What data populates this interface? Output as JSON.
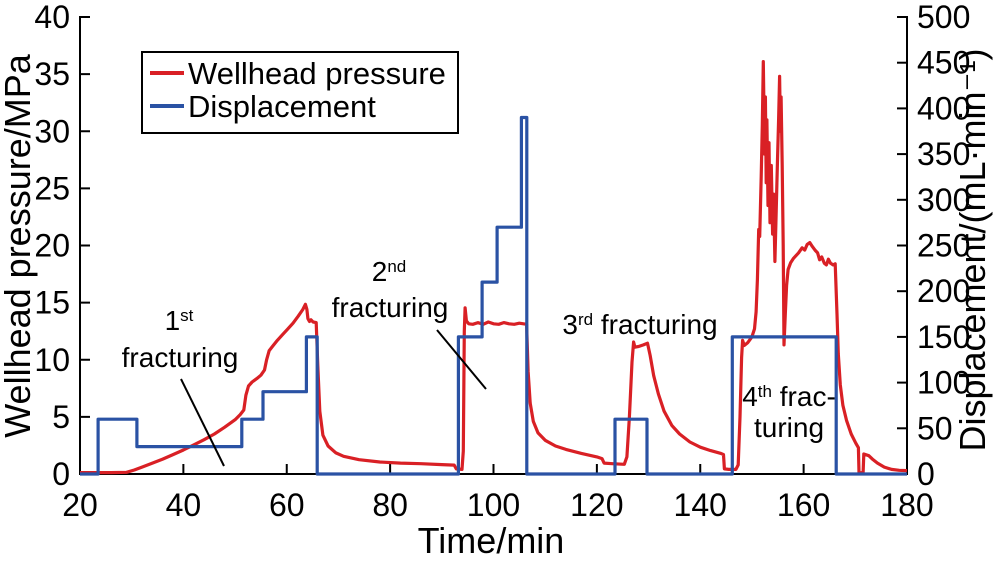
{
  "legend": {
    "items": [
      {
        "label": "Wellhead pressure",
        "color": "#d92025"
      },
      {
        "label": "Displacement",
        "color": "#2a52a4"
      }
    ]
  },
  "annotations": {
    "frac1": {
      "sup_base": "1",
      "sup": "st",
      "line2": "fracturing"
    },
    "frac2": {
      "sup_base": "2",
      "sup": "nd",
      "line2": "fracturing"
    },
    "frac3": {
      "sup_base": "3",
      "sup": "rd",
      "rest": " fracturing"
    },
    "frac4": {
      "sup_base": "4",
      "sup": "th",
      "rest": " frac-",
      "line2": "turing"
    }
  },
  "chart_data": {
    "type": "line",
    "x_axis": {
      "label": "Time/min",
      "range": [
        20,
        180
      ],
      "ticks": [
        20,
        40,
        60,
        80,
        100,
        120,
        140,
        160,
        180
      ]
    },
    "y_left": {
      "label": "Wellhead pressure/MPa",
      "range": [
        0,
        40
      ],
      "ticks": [
        0,
        5,
        10,
        15,
        20,
        25,
        30,
        35,
        40
      ]
    },
    "y_right": {
      "label": "Displacement/(mL·min⁻¹)",
      "range": [
        0,
        500
      ],
      "ticks": [
        0,
        50,
        100,
        150,
        200,
        250,
        300,
        350,
        400,
        450,
        500
      ]
    },
    "grid": false,
    "legend_position": "upper-left",
    "series": [
      {
        "name": "Wellhead pressure",
        "axis": "left",
        "style": "line",
        "color": "#d92025",
        "points": [
          [
            20,
            0.12
          ],
          [
            23,
            0.12
          ],
          [
            26,
            0.12
          ],
          [
            29,
            0.15
          ],
          [
            30.5,
            0.35
          ],
          [
            32,
            0.6
          ],
          [
            34,
            0.95
          ],
          [
            36,
            1.3
          ],
          [
            38,
            1.7
          ],
          [
            40,
            2.1
          ],
          [
            42,
            2.55
          ],
          [
            44,
            3.0
          ],
          [
            46,
            3.5
          ],
          [
            48,
            4.1
          ],
          [
            50,
            4.75
          ],
          [
            51,
            5.2
          ],
          [
            51.7,
            5.6
          ],
          [
            52.1,
            6.9
          ],
          [
            52.6,
            7.7
          ],
          [
            53.3,
            8.05
          ],
          [
            54.2,
            8.35
          ],
          [
            55,
            8.65
          ],
          [
            55.7,
            9.1
          ],
          [
            56.1,
            10.0
          ],
          [
            56.6,
            10.8
          ],
          [
            57.3,
            11.2
          ],
          [
            58.2,
            11.7
          ],
          [
            59.2,
            12.2
          ],
          [
            60.2,
            12.7
          ],
          [
            61.2,
            13.2
          ],
          [
            62.2,
            13.8
          ],
          [
            63.1,
            14.4
          ],
          [
            63.6,
            14.85
          ],
          [
            63.9,
            14.4
          ],
          [
            64.1,
            13.6
          ],
          [
            64.4,
            13.35
          ],
          [
            64.7,
            13.5
          ],
          [
            65.1,
            13.3
          ],
          [
            65.7,
            13.25
          ],
          [
            66.0,
            9.5
          ],
          [
            66.4,
            5.5
          ],
          [
            67,
            3.4
          ],
          [
            68,
            2.45
          ],
          [
            69.5,
            1.85
          ],
          [
            71,
            1.55
          ],
          [
            74,
            1.25
          ],
          [
            78,
            1.05
          ],
          [
            82,
            0.95
          ],
          [
            86,
            0.9
          ],
          [
            90,
            0.82
          ],
          [
            92.4,
            0.78
          ],
          [
            92.8,
            0.45
          ],
          [
            93.9,
            0.4
          ],
          [
            94.15,
            2
          ],
          [
            94.35,
            12.5
          ],
          [
            94.5,
            14.55
          ],
          [
            94.75,
            13.4
          ],
          [
            95.2,
            13.15
          ],
          [
            96,
            13.1
          ],
          [
            97,
            13.25
          ],
          [
            98,
            13.1
          ],
          [
            99,
            13.3
          ],
          [
            100,
            13.15
          ],
          [
            101,
            13.1
          ],
          [
            102,
            13.25
          ],
          [
            103,
            13.15
          ],
          [
            104,
            13.1
          ],
          [
            105,
            13.2
          ],
          [
            105.8,
            13.15
          ],
          [
            106.4,
            13.1
          ],
          [
            106.7,
            9.0
          ],
          [
            107.1,
            6.2
          ],
          [
            107.7,
            4.6
          ],
          [
            108.6,
            3.6
          ],
          [
            110,
            2.95
          ],
          [
            112,
            2.45
          ],
          [
            114,
            2.15
          ],
          [
            117,
            1.8
          ],
          [
            120,
            1.5
          ],
          [
            121,
            1.35
          ],
          [
            121.4,
            0.95
          ],
          [
            123,
            0.9
          ],
          [
            125.3,
            0.85
          ],
          [
            125.8,
            1.5
          ],
          [
            126.3,
            5.0
          ],
          [
            126.8,
            9.8
          ],
          [
            127.1,
            11.55
          ],
          [
            127.35,
            11.1
          ],
          [
            128,
            11.15
          ],
          [
            129,
            11.3
          ],
          [
            129.8,
            11.45
          ],
          [
            130.3,
            10.4
          ],
          [
            131,
            8.6
          ],
          [
            131.9,
            7.0
          ],
          [
            133,
            5.5
          ],
          [
            134.5,
            4.25
          ],
          [
            136,
            3.5
          ],
          [
            138,
            2.8
          ],
          [
            140,
            2.35
          ],
          [
            142,
            2.05
          ],
          [
            144,
            1.8
          ],
          [
            144.5,
            1.7
          ],
          [
            144.68,
            0.45
          ],
          [
            145.5,
            0.4
          ],
          [
            146.9,
            0.4
          ],
          [
            147.35,
            0.8
          ],
          [
            147.7,
            5.0
          ],
          [
            148.0,
            10.2
          ],
          [
            148.2,
            11.7
          ],
          [
            148.5,
            11.25
          ],
          [
            149.2,
            11.5
          ],
          [
            150.0,
            12.0
          ],
          [
            150.5,
            12.7
          ],
          [
            150.8,
            14.2
          ],
          [
            151.05,
            17
          ],
          [
            151.3,
            21.4
          ],
          [
            151.5,
            20.8
          ],
          [
            151.8,
            26
          ],
          [
            152.0,
            30.5
          ],
          [
            152.2,
            36.1
          ],
          [
            152.45,
            28
          ],
          [
            152.6,
            33
          ],
          [
            152.75,
            25.5
          ],
          [
            152.9,
            31
          ],
          [
            153.1,
            23.5
          ],
          [
            153.3,
            29
          ],
          [
            153.5,
            22
          ],
          [
            153.75,
            27
          ],
          [
            154.0,
            21
          ],
          [
            154.2,
            24.5
          ],
          [
            154.45,
            18.6
          ],
          [
            154.7,
            23
          ],
          [
            154.95,
            27.5
          ],
          [
            155.15,
            31
          ],
          [
            155.35,
            34.8
          ],
          [
            155.5,
            30
          ],
          [
            155.65,
            33
          ],
          [
            155.85,
            27
          ],
          [
            156.05,
            20
          ],
          [
            156.2,
            11.3
          ],
          [
            156.45,
            14
          ],
          [
            156.7,
            16.5
          ],
          [
            157.0,
            17.9
          ],
          [
            157.5,
            18.5
          ],
          [
            158,
            18.85
          ],
          [
            159,
            19.35
          ],
          [
            159.7,
            19.8
          ],
          [
            160.2,
            19.6
          ],
          [
            160.7,
            20.1
          ],
          [
            161.2,
            20.25
          ],
          [
            161.7,
            19.9
          ],
          [
            162.2,
            19.6
          ],
          [
            162.7,
            19.35
          ],
          [
            163.1,
            18.75
          ],
          [
            163.5,
            19.0
          ],
          [
            164,
            18.45
          ],
          [
            164.4,
            18.3
          ],
          [
            164.8,
            18.8
          ],
          [
            165.2,
            18.45
          ],
          [
            165.7,
            18.3
          ],
          [
            166.1,
            18.4
          ],
          [
            166.45,
            14
          ],
          [
            166.7,
            10.5
          ],
          [
            167.1,
            7.8
          ],
          [
            167.6,
            6.0
          ],
          [
            168.3,
            4.7
          ],
          [
            169.2,
            3.5
          ],
          [
            170.1,
            2.7
          ],
          [
            170.6,
            2.3
          ],
          [
            170.72,
            0.12
          ],
          [
            171.5,
            0.1
          ],
          [
            171.65,
            1.75
          ],
          [
            172.6,
            1.6
          ],
          [
            173.3,
            1.3
          ],
          [
            174.3,
            0.95
          ],
          [
            175.6,
            0.6
          ],
          [
            177,
            0.4
          ],
          [
            178.5,
            0.32
          ],
          [
            180,
            0.3
          ]
        ]
      },
      {
        "name": "Displacement",
        "axis": "right",
        "style": "step",
        "color": "#2a52a4",
        "points": [
          [
            20,
            0
          ],
          [
            23.5,
            60
          ],
          [
            31,
            30
          ],
          [
            51.3,
            60
          ],
          [
            55.4,
            90
          ],
          [
            63.8,
            150
          ],
          [
            65.9,
            0
          ],
          [
            93.2,
            150
          ],
          [
            97.8,
            210
          ],
          [
            100.7,
            270
          ],
          [
            105.4,
            390
          ],
          [
            106.45,
            0
          ],
          [
            123.5,
            60
          ],
          [
            129.7,
            0
          ],
          [
            146.2,
            150
          ],
          [
            166.3,
            0
          ],
          [
            180,
            0
          ]
        ]
      }
    ]
  }
}
